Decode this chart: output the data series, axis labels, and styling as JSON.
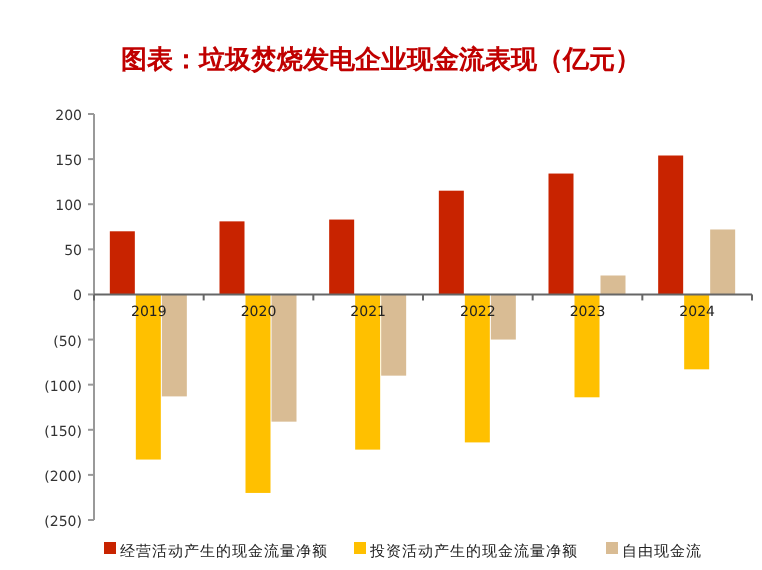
{
  "chart_data": {
    "type": "bar",
    "title": "图表：垃圾焚烧发电企业现金流表现（亿元）",
    "categories": [
      "2019",
      "2020",
      "2021",
      "2022",
      "2023",
      "2024"
    ],
    "series": [
      {
        "name": "经营活动产生的现金流量净额",
        "color": "#c82300",
        "values": [
          70,
          81,
          83,
          115,
          134,
          154
        ]
      },
      {
        "name": "投资活动产生的现金流量净额",
        "color": "#ffc000",
        "values": [
          -183,
          -220,
          -172,
          -164,
          -114,
          -83
        ]
      },
      {
        "name": "自由现金流",
        "color": "#d9bc94",
        "values": [
          -113,
          -141,
          -90,
          -50,
          21,
          72
        ]
      }
    ],
    "ylim": [
      -250,
      200
    ],
    "yticks": [
      200,
      150,
      100,
      50,
      0,
      {
        "value": -50,
        "label": "(50)"
      },
      {
        "value": -100,
        "label": "(100)"
      },
      {
        "value": -150,
        "label": "(150)"
      },
      {
        "value": -200,
        "label": "(200)"
      },
      {
        "value": -250,
        "label": "(250)"
      }
    ],
    "legend": "bottom",
    "grid": false
  }
}
